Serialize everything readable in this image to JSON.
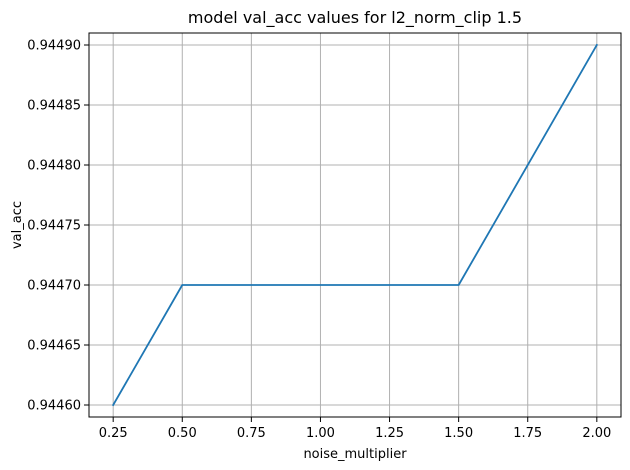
{
  "chart_data": {
    "type": "line",
    "title": "model val_acc values for l2_norm_clip 1.5",
    "xlabel": "noise_multiplier",
    "ylabel": "val_acc",
    "x": [
      0.25,
      0.5,
      1.0,
      1.5,
      2.0
    ],
    "series": [
      {
        "values": [
          0.9446,
          0.9447,
          0.9447,
          0.9447,
          0.9449
        ]
      }
    ],
    "xlim": [
      0.1625,
      2.0875
    ],
    "ylim": [
      0.94459,
      0.94491
    ],
    "x_ticks": [
      0.25,
      0.5,
      0.75,
      1.0,
      1.25,
      1.5,
      1.75,
      2.0
    ],
    "x_tick_labels": [
      "0.25",
      "0.50",
      "0.75",
      "1.00",
      "1.25",
      "1.50",
      "1.75",
      "2.00"
    ],
    "y_ticks": [
      0.9446,
      0.94465,
      0.9447,
      0.94475,
      0.9448,
      0.94485,
      0.9449
    ],
    "y_tick_labels": [
      "0.94460",
      "0.94465",
      "0.94470",
      "0.94475",
      "0.94480",
      "0.94485",
      "0.94490"
    ],
    "grid": true,
    "colors": {
      "series": "#1f77b4",
      "grid": "#b0b0b0",
      "frame": "#000000"
    }
  }
}
